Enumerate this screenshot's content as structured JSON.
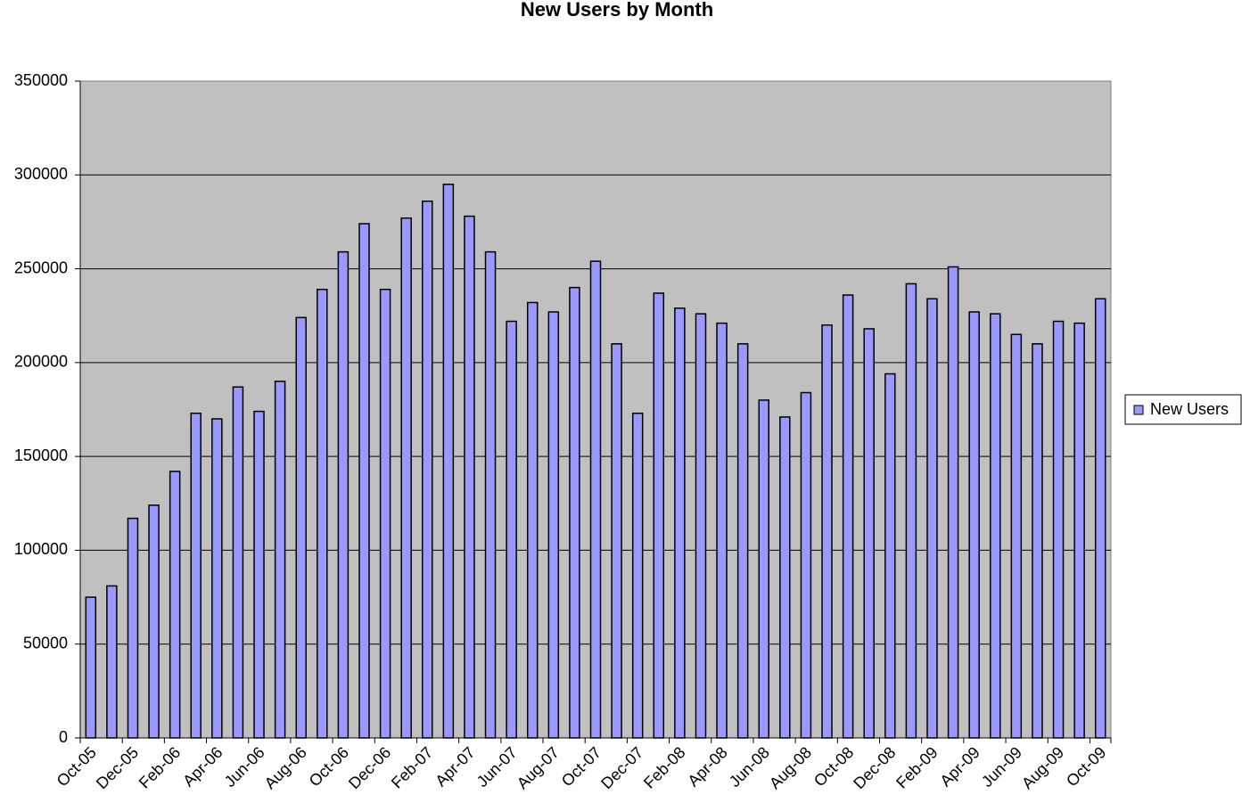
{
  "chart_data": {
    "type": "bar",
    "title": "New Users by Month",
    "categories": [
      "Oct-05",
      null,
      "Dec-05",
      null,
      "Feb-06",
      null,
      "Apr-06",
      null,
      "Jun-06",
      null,
      "Aug-06",
      null,
      "Oct-06",
      null,
      "Dec-06",
      null,
      "Feb-07",
      null,
      "Apr-07",
      null,
      "Jun-07",
      null,
      "Aug-07",
      null,
      "Oct-07",
      null,
      "Dec-07",
      null,
      "Feb-08",
      null,
      "Apr-08",
      null,
      "Jun-08",
      null,
      "Aug-08",
      null,
      "Oct-08",
      null,
      "Dec-08",
      null,
      "Feb-09",
      null,
      "Apr-09",
      null,
      "Jun-09",
      null,
      "Aug-09",
      null,
      "Oct-09"
    ],
    "series": [
      {
        "name": "New Users",
        "color": "#9999ff",
        "values": [
          75000,
          81000,
          117000,
          124000,
          142000,
          173000,
          170000,
          187000,
          174000,
          190000,
          224000,
          239000,
          259000,
          274000,
          239000,
          277000,
          286000,
          295000,
          278000,
          259000,
          222000,
          232000,
          227000,
          240000,
          254000,
          210000,
          173000,
          237000,
          229000,
          226000,
          221000,
          210000,
          180000,
          171000,
          184000,
          220000,
          236000,
          218000,
          194000,
          242000,
          234000,
          251000,
          227000,
          226000,
          215000,
          210000,
          222000,
          221000,
          234000
        ]
      }
    ],
    "ylim": [
      0,
      350000
    ],
    "yticks": [
      0,
      50000,
      100000,
      150000,
      200000,
      250000,
      300000,
      350000
    ],
    "grid": true,
    "legend": "right",
    "background": "#c0c0c0"
  }
}
